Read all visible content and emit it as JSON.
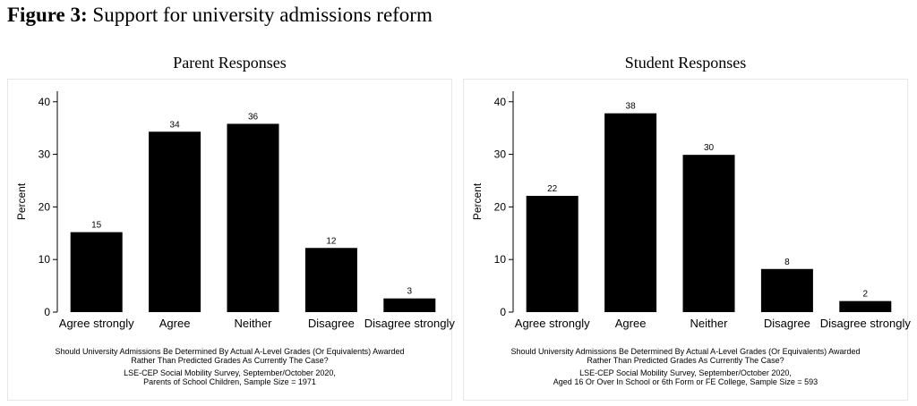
{
  "figure": {
    "label": "Figure 3:",
    "title": "Support for university admissions reform"
  },
  "chart_data": [
    {
      "type": "bar",
      "title": "Parent Responses",
      "ylabel": "Percent",
      "ylim": [
        0,
        42
      ],
      "yticks": [
        0,
        10,
        20,
        30,
        40
      ],
      "categories": [
        "Agree strongly",
        "Agree",
        "Neither",
        "Disagree",
        "Disagree strongly"
      ],
      "values": [
        15.2,
        34.3,
        35.8,
        12.2,
        2.6
      ],
      "value_labels": [
        "15",
        "34",
        "36",
        "12",
        "3"
      ],
      "notes": [
        "Should University Admissions Be Determined By Actual A-Level Grades (Or Equivalents) Awarded",
        "Rather Than Predicted Grades As Currently The Case?",
        "LSE-CEP Social Mobility Survey, September/October 2020,",
        "Parents of School Children, Sample Size = 1971"
      ],
      "bar_color": "#000000"
    },
    {
      "type": "bar",
      "title": "Student Responses",
      "ylabel": "Percent",
      "ylim": [
        0,
        42
      ],
      "yticks": [
        0,
        10,
        20,
        30,
        40
      ],
      "categories": [
        "Agree strongly",
        "Agree",
        "Neither",
        "Disagree",
        "Disagree strongly"
      ],
      "values": [
        22.1,
        37.8,
        29.9,
        8.2,
        2.1
      ],
      "value_labels": [
        "22",
        "38",
        "30",
        "8",
        "2"
      ],
      "notes": [
        "Should University Admissions Be Determined By Actual A-Level Grades (Or Equivalents) Awarded",
        "Rather Than Predicted Grades As Currently The Case?",
        "LSE-CEP Social Mobility Survey, September/October 2020,",
        "Aged 16 Or Over In School or 6th Form or FE College, Sample Size = 593"
      ],
      "bar_color": "#000000"
    }
  ]
}
